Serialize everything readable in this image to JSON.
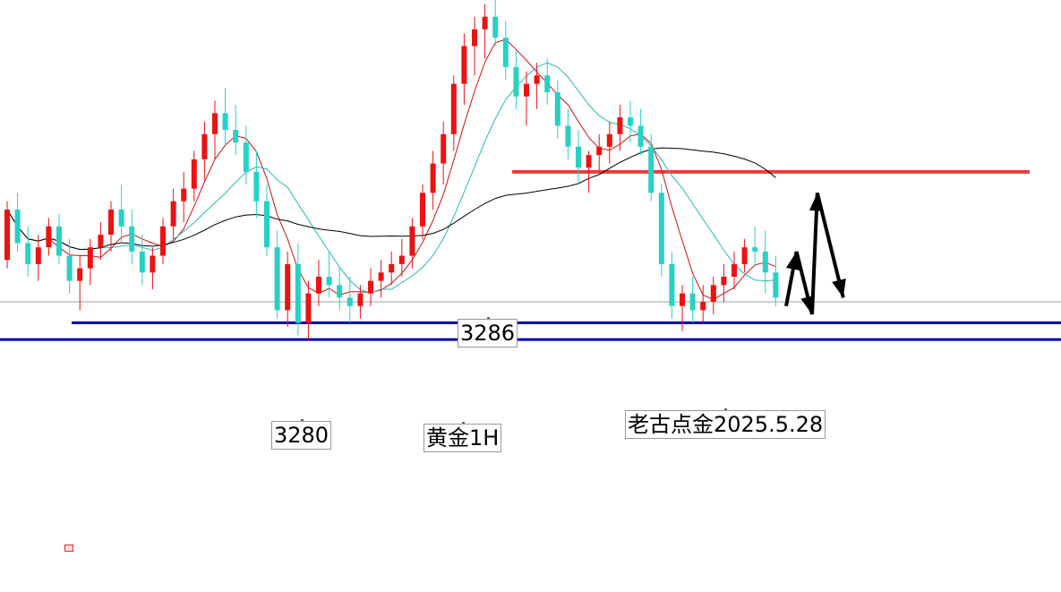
{
  "chart_data": {
    "type": "candlestick",
    "symbol_label": "黄金1H",
    "author_label": "老古点金2025.5.28",
    "annotations": {
      "price_3286": "3286",
      "price_3280": "3280"
    },
    "ylim": [
      3272,
      3366
    ],
    "horizontal_levels": [
      {
        "value": 3325,
        "color": "#ee3b3b"
      },
      {
        "value": 3289,
        "color": "#0000aa"
      },
      {
        "value": 3285,
        "color": "#0000aa"
      },
      {
        "value": 3294,
        "color": "#9aa3a3"
      }
    ],
    "colors": {
      "up": "#ee1111",
      "down": "#27d1c5",
      "ma_fast": "#cc1111",
      "ma_mid": "#27b8b0",
      "ma_slow": "#000000"
    },
    "candles": [
      [
        3304,
        3318,
        3302,
        3316
      ],
      [
        3316,
        3320,
        3306,
        3308
      ],
      [
        3308,
        3312,
        3300,
        3303
      ],
      [
        3303,
        3310,
        3299,
        3307
      ],
      [
        3307,
        3314,
        3305,
        3312
      ],
      [
        3312,
        3315,
        3303,
        3305
      ],
      [
        3305,
        3309,
        3296,
        3299
      ],
      [
        3299,
        3305,
        3292,
        3302
      ],
      [
        3302,
        3309,
        3298,
        3307
      ],
      [
        3307,
        3313,
        3304,
        3310
      ],
      [
        3310,
        3318,
        3306,
        3316
      ],
      [
        3316,
        3322,
        3308,
        3312
      ],
      [
        3312,
        3316,
        3303,
        3306
      ],
      [
        3306,
        3310,
        3298,
        3301
      ],
      [
        3301,
        3307,
        3297,
        3305
      ],
      [
        3305,
        3314,
        3303,
        3312
      ],
      [
        3312,
        3321,
        3309,
        3318
      ],
      [
        3318,
        3325,
        3313,
        3321
      ],
      [
        3321,
        3330,
        3318,
        3328
      ],
      [
        3328,
        3337,
        3323,
        3334
      ],
      [
        3334,
        3342,
        3328,
        3339
      ],
      [
        3339,
        3345,
        3331,
        3335
      ],
      [
        3335,
        3341,
        3329,
        3332
      ],
      [
        3332,
        3336,
        3322,
        3325
      ],
      [
        3325,
        3330,
        3314,
        3318
      ],
      [
        3318,
        3322,
        3305,
        3307
      ],
      [
        3307,
        3311,
        3290,
        3292
      ],
      [
        3292,
        3306,
        3288,
        3303
      ],
      [
        3303,
        3308,
        3286,
        3289
      ],
      [
        3289,
        3299,
        3285,
        3296
      ],
      [
        3296,
        3304,
        3293,
        3300
      ],
      [
        3300,
        3306,
        3295,
        3298
      ],
      [
        3298,
        3302,
        3292,
        3295
      ],
      [
        3295,
        3300,
        3289,
        3293
      ],
      [
        3293,
        3298,
        3290,
        3296
      ],
      [
        3296,
        3302,
        3293,
        3299
      ],
      [
        3299,
        3304,
        3295,
        3301
      ],
      [
        3301,
        3306,
        3298,
        3303
      ],
      [
        3303,
        3309,
        3300,
        3305
      ],
      [
        3305,
        3314,
        3302,
        3312
      ],
      [
        3312,
        3322,
        3309,
        3320
      ],
      [
        3320,
        3330,
        3316,
        3327
      ],
      [
        3327,
        3337,
        3322,
        3334
      ],
      [
        3334,
        3348,
        3330,
        3346
      ],
      [
        3346,
        3358,
        3341,
        3355
      ],
      [
        3355,
        3362,
        3348,
        3359
      ],
      [
        3359,
        3365,
        3352,
        3362
      ],
      [
        3362,
        3366,
        3355,
        3357
      ],
      [
        3357,
        3361,
        3347,
        3350
      ],
      [
        3350,
        3354,
        3340,
        3343
      ],
      [
        3343,
        3349,
        3336,
        3346
      ],
      [
        3346,
        3351,
        3340,
        3348
      ],
      [
        3348,
        3352,
        3341,
        3344
      ],
      [
        3344,
        3347,
        3333,
        3336
      ],
      [
        3336,
        3340,
        3328,
        3331
      ],
      [
        3331,
        3335,
        3322,
        3326
      ],
      [
        3326,
        3330,
        3320,
        3329
      ],
      [
        3329,
        3334,
        3325,
        3331
      ],
      [
        3331,
        3337,
        3327,
        3334
      ],
      [
        3334,
        3341,
        3330,
        3338
      ],
      [
        3338,
        3342,
        3332,
        3336
      ],
      [
        3336,
        3340,
        3329,
        3331
      ],
      [
        3331,
        3334,
        3318,
        3320
      ],
      [
        3320,
        3322,
        3300,
        3303
      ],
      [
        3303,
        3306,
        3290,
        3293
      ],
      [
        3293,
        3298,
        3287,
        3296
      ],
      [
        3296,
        3300,
        3289,
        3292
      ],
      [
        3292,
        3298,
        3289,
        3294
      ],
      [
        3294,
        3300,
        3291,
        3298
      ],
      [
        3298,
        3303,
        3294,
        3300
      ],
      [
        3300,
        3306,
        3297,
        3303
      ],
      [
        3303,
        3309,
        3301,
        3307
      ],
      [
        3307,
        3312,
        3303,
        3306
      ],
      [
        3306,
        3311,
        3296,
        3301
      ],
      [
        3301,
        3305,
        3293,
        3295
      ]
    ],
    "projection_arrows": [
      {
        "from": [
          75,
          3293
        ],
        "to": [
          76,
          3306
        ]
      },
      {
        "from": [
          76,
          3306
        ],
        "to": [
          77.5,
          3291
        ]
      },
      {
        "from": [
          77.5,
          3291
        ],
        "to": [
          78,
          3320
        ]
      },
      {
        "from": [
          78,
          3320
        ],
        "to": [
          80.5,
          3295
        ]
      }
    ]
  }
}
